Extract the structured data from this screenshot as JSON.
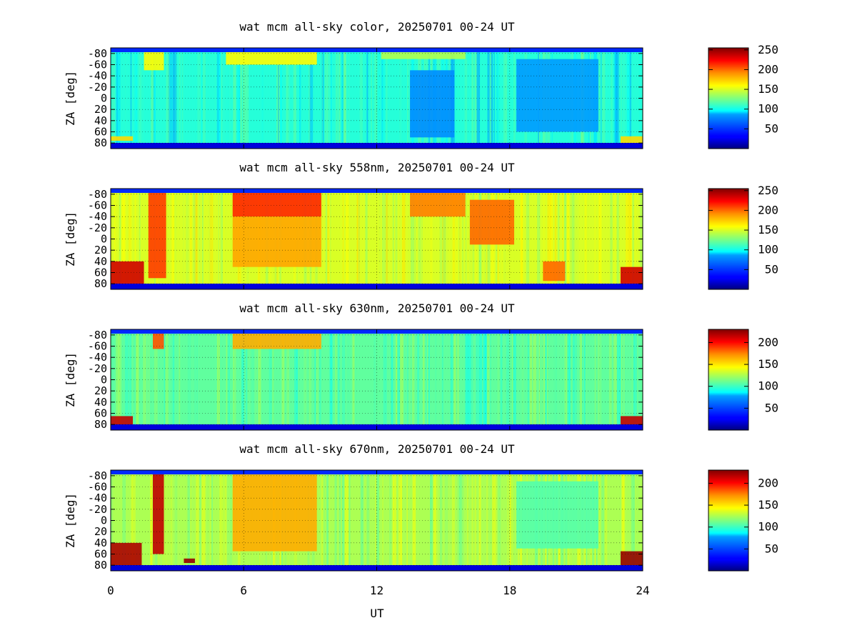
{
  "figure": {
    "xlabel": "UT",
    "ylabel": "ZA [deg]",
    "x_ticks": [
      "0",
      "6",
      "12",
      "18",
      "24"
    ]
  },
  "chart_data": [
    {
      "type": "heatmap",
      "title": "wat mcm all-sky color, 20250701 00-24 UT",
      "xlabel": "UT",
      "ylabel": "ZA [deg]",
      "xlim": [
        0,
        24
      ],
      "ylim": [
        -90,
        90
      ],
      "x_ticks": [
        0,
        6,
        12,
        18,
        24
      ],
      "y_ticks": [
        "-80",
        "-60",
        "-40",
        "-20",
        "0",
        "20",
        "40",
        "60",
        "80"
      ],
      "colorbar": {
        "min": 0,
        "max": 255,
        "ticks": [
          "50",
          "100",
          "150",
          "200",
          "250"
        ],
        "colormap": "jet"
      },
      "grid": true,
      "features": [
        {
          "t0": 1.5,
          "t1": 2.4,
          "z0": -90,
          "z1": -50,
          "value": 160
        },
        {
          "t0": 5.2,
          "t1": 9.3,
          "z0": -90,
          "z1": -60,
          "value": 160
        },
        {
          "t0": 12.2,
          "t1": 16.0,
          "z0": -90,
          "z1": -70,
          "value": 140
        },
        {
          "t0": 0.0,
          "t1": 1.0,
          "z0": 68,
          "z1": 76,
          "value": 170
        },
        {
          "t0": 23.0,
          "t1": 24.0,
          "z0": 68,
          "z1": 80,
          "value": 170
        },
        {
          "t0": 13.5,
          "t1": 15.5,
          "z0": -50,
          "z1": 70,
          "value": 80
        },
        {
          "t0": 18.3,
          "t1": 22.0,
          "z0": -70,
          "z1": 60,
          "value": 85
        }
      ]
    },
    {
      "type": "heatmap",
      "title": "wat mcm all-sky 558nm, 20250701 00-24 UT",
      "xlabel": "UT",
      "ylabel": "ZA [deg]",
      "xlim": [
        0,
        24
      ],
      "ylim": [
        -90,
        90
      ],
      "x_ticks": [
        0,
        6,
        12,
        18,
        24
      ],
      "y_ticks": [
        "-80",
        "-60",
        "-40",
        "-20",
        "0",
        "20",
        "40",
        "60",
        "80"
      ],
      "colorbar": {
        "min": 0,
        "max": 255,
        "ticks": [
          "50",
          "100",
          "150",
          "200",
          "250"
        ],
        "colormap": "jet"
      },
      "grid": true,
      "features": [
        {
          "t0": 0.0,
          "t1": 1.5,
          "z0": 40,
          "z1": 85,
          "value": 235
        },
        {
          "t0": 1.7,
          "t1": 2.5,
          "z0": -88,
          "z1": 70,
          "value": 210
        },
        {
          "t0": 5.5,
          "t1": 9.5,
          "z0": -88,
          "z1": -40,
          "value": 215
        },
        {
          "t0": 5.5,
          "t1": 9.5,
          "z0": -40,
          "z1": 50,
          "value": 185
        },
        {
          "t0": 13.5,
          "t1": 16.0,
          "z0": -88,
          "z1": -40,
          "value": 195
        },
        {
          "t0": 16.2,
          "t1": 18.2,
          "z0": -70,
          "z1": 10,
          "value": 200
        },
        {
          "t0": 19.5,
          "t1": 20.5,
          "z0": 40,
          "z1": 75,
          "value": 200
        },
        {
          "t0": 23.0,
          "t1": 24.0,
          "z0": 50,
          "z1": 85,
          "value": 235
        }
      ]
    },
    {
      "type": "heatmap",
      "title": "wat mcm all-sky 630nm, 20250701 00-24 UT",
      "xlabel": "UT",
      "ylabel": "ZA [deg]",
      "xlim": [
        0,
        24
      ],
      "ylim": [
        -90,
        90
      ],
      "x_ticks": [
        0,
        6,
        12,
        18,
        24
      ],
      "y_ticks": [
        "-80",
        "-60",
        "-40",
        "-20",
        "0",
        "20",
        "40",
        "60",
        "80"
      ],
      "colorbar": {
        "min": 0,
        "max": 230,
        "ticks": [
          "50",
          "100",
          "150",
          "200"
        ],
        "colormap": "jet"
      },
      "grid": true,
      "features": [
        {
          "t0": 0.0,
          "t1": 1.0,
          "z0": 65,
          "z1": 80,
          "value": 215
        },
        {
          "t0": 1.9,
          "t1": 2.4,
          "z0": -85,
          "z1": -55,
          "value": 185
        },
        {
          "t0": 5.5,
          "t1": 9.5,
          "z0": -85,
          "z1": -55,
          "value": 165
        },
        {
          "t0": 23.0,
          "t1": 24.0,
          "z0": 65,
          "z1": 80,
          "value": 215
        }
      ]
    },
    {
      "type": "heatmap",
      "title": "wat mcm all-sky 670nm, 20250701 00-24 UT",
      "xlabel": "UT",
      "ylabel": "ZA [deg]",
      "xlim": [
        0,
        24
      ],
      "ylim": [
        -90,
        90
      ],
      "x_ticks": [
        0,
        6,
        12,
        18,
        24
      ],
      "y_ticks": [
        "-80",
        "-60",
        "-40",
        "-20",
        "0",
        "20",
        "40",
        "60",
        "80"
      ],
      "colorbar": {
        "min": 0,
        "max": 230,
        "ticks": [
          "50",
          "100",
          "150",
          "200"
        ],
        "colormap": "jet"
      },
      "grid": true,
      "features": [
        {
          "t0": 0.0,
          "t1": 1.4,
          "z0": 40,
          "z1": 80,
          "value": 220
        },
        {
          "t0": 1.9,
          "t1": 2.4,
          "z0": -88,
          "z1": 60,
          "value": 215
        },
        {
          "t0": 5.5,
          "t1": 9.3,
          "z0": -88,
          "z1": 55,
          "value": 165
        },
        {
          "t0": 3.3,
          "t1": 3.8,
          "z0": 68,
          "z1": 76,
          "value": 225
        },
        {
          "t0": 18.3,
          "t1": 22.0,
          "z0": -70,
          "z1": 50,
          "value": 105
        },
        {
          "t0": 23.0,
          "t1": 24.0,
          "z0": 55,
          "z1": 80,
          "value": 225
        }
      ]
    }
  ]
}
